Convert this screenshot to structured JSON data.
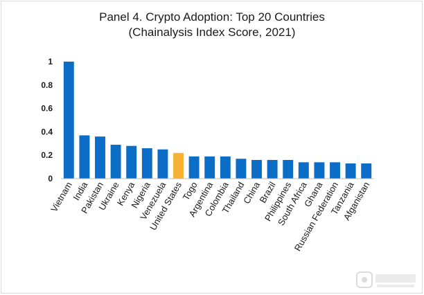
{
  "chart_data": {
    "type": "bar",
    "title": "Panel 4. Crypto Adoption: Top 20 Countries",
    "subtitle": "(Chainalysis Index Score, 2021)",
    "xlabel": "",
    "ylabel": "",
    "ylim": [
      0,
      1
    ],
    "yticks": [
      "0",
      "0.2",
      "0.4",
      "0.6",
      "0.8",
      "1"
    ],
    "grid": false,
    "legend": "none",
    "categories": [
      "Vietnam",
      "India",
      "Pakistan",
      "Ukraine",
      "Kenya",
      "Nigeria",
      "Venezuela",
      "United States",
      "Togo",
      "Argentina",
      "Colombia",
      "Thailand",
      "China",
      "Brazil",
      "Philippines",
      "South Africa",
      "Ghana",
      "Russian Federation",
      "Tanzania",
      "Afganistan"
    ],
    "values": [
      1.0,
      0.37,
      0.36,
      0.29,
      0.28,
      0.26,
      0.25,
      0.22,
      0.19,
      0.19,
      0.19,
      0.17,
      0.16,
      0.16,
      0.16,
      0.14,
      0.14,
      0.14,
      0.13,
      0.13
    ],
    "highlight_category": "United States",
    "colors": {
      "bar": "#0b6dc6",
      "highlight": "#f5b335",
      "axis": "#bfbfbf",
      "text": "#1a1a1a"
    }
  }
}
